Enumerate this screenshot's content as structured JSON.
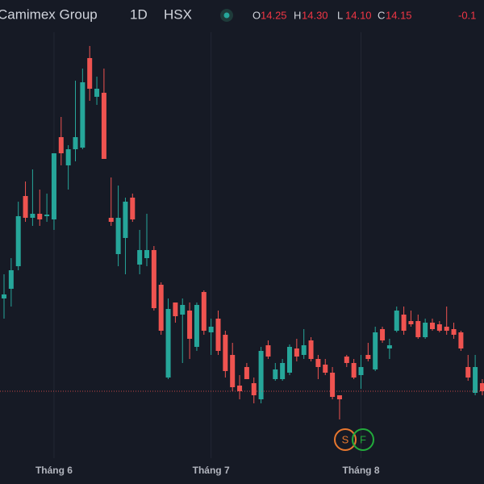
{
  "header": {
    "name": "Camimex Group",
    "interval": "1D",
    "exchange": "HSX",
    "ohlc": [
      {
        "label": "O",
        "value": "14.25"
      },
      {
        "label": "H",
        "value": "14.30"
      },
      {
        "label": "L",
        "value": "14.10"
      },
      {
        "label": "C",
        "value": "14.15"
      }
    ],
    "change": "-0.1"
  },
  "chart_data": {
    "type": "candlestick",
    "categories": [
      null,
      null,
      null,
      null,
      null,
      null,
      null,
      "Tháng 6",
      null,
      null,
      null,
      null,
      null,
      null,
      null,
      null,
      null,
      null,
      null,
      null,
      null,
      null,
      null,
      null,
      null,
      null,
      null,
      null,
      null,
      "Tháng 7",
      null,
      null,
      null,
      null,
      null,
      null,
      null,
      null,
      null,
      null,
      null,
      null,
      null,
      null,
      null,
      null,
      null,
      null,
      null,
      null,
      "Tháng 8",
      null,
      null,
      null,
      null,
      null,
      null,
      null,
      null,
      null,
      null,
      null,
      null,
      null,
      null,
      null,
      null,
      null
    ],
    "open": [
      15.3,
      15.42,
      15.7,
      16.57,
      16.3,
      16.35,
      16.32,
      16.28,
      17.3,
      16.95,
      17.15,
      17.17,
      18.28,
      17.8,
      17.85,
      16.3,
      15.85,
      16.05,
      16.55,
      15.72,
      15.8,
      15.9,
      15.47,
      14.32,
      15.25,
      15.1,
      15.15,
      14.7,
      15.38,
      14.88,
      15.05,
      14.85,
      14.6,
      14.22,
      14.45,
      14.25,
      14.05,
      14.72,
      14.3,
      14.3,
      14.38,
      14.68,
      14.6,
      14.78,
      14.55,
      14.48,
      14.38,
      14.1,
      14.58,
      14.5,
      14.35,
      14.6,
      14.42,
      14.92,
      14.68,
      14.9,
      15.1,
      15.02,
      15.02,
      14.82,
      15.0,
      14.98,
      14.95,
      14.92,
      14.88,
      14.45,
      14.13,
      14.25
    ],
    "high": [
      15.6,
      15.8,
      16.5,
      16.75,
      16.9,
      16.65,
      16.6,
      17.1,
      17.55,
      17.2,
      18.0,
      18.15,
      18.43,
      18.05,
      18.15,
      16.8,
      16.7,
      16.55,
      16.6,
      16.15,
      16.35,
      15.95,
      15.5,
      15.3,
      15.25,
      15.3,
      15.25,
      15.25,
      15.4,
      15.05,
      15.15,
      14.9,
      14.75,
      14.35,
      14.5,
      14.32,
      14.7,
      14.78,
      14.5,
      14.55,
      14.73,
      14.8,
      14.92,
      14.82,
      14.6,
      14.55,
      14.45,
      14.1,
      14.6,
      14.55,
      14.6,
      14.75,
      14.95,
      14.95,
      14.8,
      15.2,
      15.2,
      15.15,
      15.1,
      15.05,
      15.05,
      15.02,
      15.2,
      15.0,
      14.9,
      14.6,
      14.6,
      14.3
    ],
    "low": [
      15.05,
      15.2,
      15.65,
      16.25,
      16.2,
      16.2,
      16.25,
      16.15,
      16.95,
      16.65,
      17.0,
      17.15,
      17.75,
      17.7,
      17.03,
      16.2,
      15.7,
      15.6,
      16.25,
      15.6,
      15.7,
      15.15,
      14.85,
      14.3,
      15.0,
      14.5,
      14.55,
      14.65,
      14.85,
      14.6,
      14.6,
      14.32,
      14.15,
      14.05,
      14.3,
      14.0,
      14.0,
      14.55,
      14.28,
      14.28,
      14.35,
      14.52,
      14.55,
      14.52,
      14.3,
      14.35,
      14.05,
      13.8,
      14.45,
      14.3,
      14.18,
      14.52,
      14.4,
      14.75,
      14.55,
      14.88,
      14.85,
      14.95,
      14.8,
      14.8,
      14.9,
      14.88,
      14.85,
      14.8,
      14.65,
      14.28,
      14.1,
      14.1
    ],
    "close": [
      15.35,
      15.65,
      16.32,
      16.3,
      16.35,
      16.28,
      16.34,
      17.1,
      17.1,
      17.15,
      17.3,
      17.98,
      17.9,
      17.9,
      17.03,
      16.25,
      16.3,
      16.5,
      16.28,
      15.9,
      15.9,
      15.18,
      14.9,
      15.17,
      15.08,
      15.22,
      14.8,
      15.22,
      14.9,
      14.95,
      14.65,
      14.4,
      14.2,
      14.15,
      14.3,
      14.1,
      14.65,
      14.58,
      14.42,
      14.5,
      14.7,
      14.58,
      14.72,
      14.55,
      14.45,
      14.38,
      14.08,
      14.05,
      14.5,
      14.32,
      14.45,
      14.55,
      14.88,
      14.78,
      14.72,
      15.15,
      14.9,
      14.98,
      14.82,
      15.0,
      14.92,
      14.9,
      14.9,
      14.85,
      14.68,
      14.32,
      14.45,
      14.15
    ],
    "up_color": "#26a69a",
    "down_color": "#ef5350",
    "ylim": [
      13.0,
      19.0
    ],
    "grid": true,
    "events": [
      {
        "label": "S",
        "color": "#e8772e"
      },
      {
        "label": "F",
        "color": "#22ab3b"
      }
    ]
  }
}
